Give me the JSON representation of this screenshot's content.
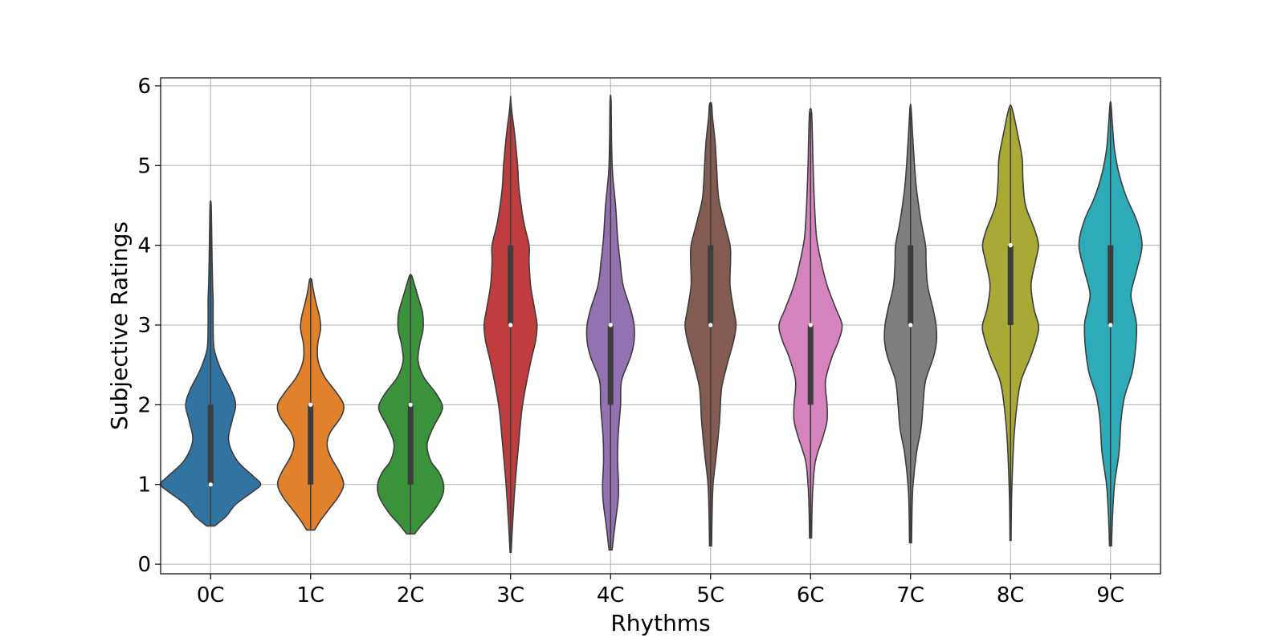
{
  "chart_data": {
    "type": "violin",
    "xlabel": "Rhythms",
    "ylabel": "Subjective Ratings",
    "ylim": [
      -0.12,
      6.1
    ],
    "yticks": [
      "0",
      "1",
      "2",
      "3",
      "4",
      "5",
      "6"
    ],
    "grid": true,
    "categories": [
      "0C",
      "1C",
      "2C",
      "3C",
      "4C",
      "5C",
      "6C",
      "7C",
      "8C",
      "9C"
    ],
    "colors": [
      "#3274a1",
      "#e1812c",
      "#3a923a",
      "#c03d3e",
      "#9372b2",
      "#845b53",
      "#d684bd",
      "#7f7f7f",
      "#a9aa35",
      "#2eabb8"
    ],
    "violins": [
      {
        "name": "0C",
        "range": [
          0.48,
          4.52
        ],
        "median": 1,
        "q1": 1,
        "q3": 2,
        "density": [
          [
            0.48,
            0.08
          ],
          [
            0.6,
            0.31
          ],
          [
            0.75,
            0.5
          ],
          [
            0.9,
            0.82
          ],
          [
            1.0,
            1.0
          ],
          [
            1.1,
            0.86
          ],
          [
            1.3,
            0.53
          ],
          [
            1.55,
            0.36
          ],
          [
            1.8,
            0.43
          ],
          [
            2.0,
            0.5
          ],
          [
            2.2,
            0.4
          ],
          [
            2.45,
            0.2
          ],
          [
            2.7,
            0.07
          ],
          [
            3.0,
            0.05
          ],
          [
            3.3,
            0.05
          ],
          [
            3.5,
            0.04
          ],
          [
            3.8,
            0.03
          ],
          [
            4.2,
            0.02
          ],
          [
            4.52,
            0.01
          ]
        ]
      },
      {
        "name": "1C",
        "range": [
          0.43,
          3.57
        ],
        "median": 2,
        "q1": 1,
        "q3": 2,
        "density": [
          [
            0.43,
            0.08
          ],
          [
            0.55,
            0.2
          ],
          [
            0.7,
            0.38
          ],
          [
            0.85,
            0.56
          ],
          [
            1.0,
            0.66
          ],
          [
            1.15,
            0.58
          ],
          [
            1.35,
            0.4
          ],
          [
            1.5,
            0.33
          ],
          [
            1.65,
            0.39
          ],
          [
            1.85,
            0.61
          ],
          [
            2.0,
            0.66
          ],
          [
            2.15,
            0.52
          ],
          [
            2.35,
            0.28
          ],
          [
            2.55,
            0.15
          ],
          [
            2.75,
            0.14
          ],
          [
            2.95,
            0.2
          ],
          [
            3.1,
            0.18
          ],
          [
            3.3,
            0.1
          ],
          [
            3.45,
            0.05
          ],
          [
            3.57,
            0.02
          ]
        ]
      },
      {
        "name": "2C",
        "range": [
          0.38,
          3.62
        ],
        "median": 2,
        "q1": 1,
        "q3": 2,
        "density": [
          [
            0.38,
            0.08
          ],
          [
            0.5,
            0.23
          ],
          [
            0.65,
            0.44
          ],
          [
            0.85,
            0.63
          ],
          [
            1.0,
            0.66
          ],
          [
            1.15,
            0.57
          ],
          [
            1.3,
            0.4
          ],
          [
            1.5,
            0.33
          ],
          [
            1.7,
            0.44
          ],
          [
            1.9,
            0.61
          ],
          [
            2.0,
            0.63
          ],
          [
            2.15,
            0.5
          ],
          [
            2.35,
            0.26
          ],
          [
            2.55,
            0.15
          ],
          [
            2.75,
            0.18
          ],
          [
            2.95,
            0.25
          ],
          [
            3.15,
            0.24
          ],
          [
            3.35,
            0.15
          ],
          [
            3.5,
            0.08
          ],
          [
            3.62,
            0.02
          ]
        ]
      },
      {
        "name": "3C",
        "range": [
          0.15,
          5.85
        ],
        "median": 3,
        "q1": 3,
        "q3": 4,
        "density": [
          [
            0.15,
            0.01
          ],
          [
            0.5,
            0.04
          ],
          [
            1.0,
            0.09
          ],
          [
            1.5,
            0.16
          ],
          [
            2.0,
            0.24
          ],
          [
            2.5,
            0.39
          ],
          [
            2.8,
            0.5
          ],
          [
            3.0,
            0.53
          ],
          [
            3.2,
            0.48
          ],
          [
            3.5,
            0.4
          ],
          [
            3.8,
            0.37
          ],
          [
            4.0,
            0.37
          ],
          [
            4.3,
            0.26
          ],
          [
            4.7,
            0.17
          ],
          [
            5.0,
            0.14
          ],
          [
            5.4,
            0.08
          ],
          [
            5.7,
            0.02
          ],
          [
            5.85,
            0.0
          ]
        ]
      },
      {
        "name": "4C",
        "range": [
          0.18,
          5.82
        ],
        "median": 3,
        "q1": 2,
        "q3": 3,
        "density": [
          [
            0.18,
            0.03
          ],
          [
            0.5,
            0.09
          ],
          [
            0.8,
            0.15
          ],
          [
            1.0,
            0.16
          ],
          [
            1.3,
            0.14
          ],
          [
            1.6,
            0.15
          ],
          [
            2.0,
            0.2
          ],
          [
            2.3,
            0.22
          ],
          [
            2.6,
            0.4
          ],
          [
            2.8,
            0.47
          ],
          [
            3.0,
            0.47
          ],
          [
            3.2,
            0.4
          ],
          [
            3.5,
            0.25
          ],
          [
            3.8,
            0.19
          ],
          [
            4.1,
            0.14
          ],
          [
            4.5,
            0.1
          ],
          [
            4.9,
            0.04
          ],
          [
            5.3,
            0.02
          ],
          [
            5.82,
            0.01
          ]
        ]
      },
      {
        "name": "5C",
        "range": [
          0.23,
          5.77
        ],
        "median": 3,
        "q1": 3,
        "q3": 4,
        "density": [
          [
            0.23,
            0.02
          ],
          [
            0.6,
            0.03
          ],
          [
            1.0,
            0.05
          ],
          [
            1.4,
            0.12
          ],
          [
            1.8,
            0.18
          ],
          [
            2.2,
            0.22
          ],
          [
            2.5,
            0.33
          ],
          [
            2.8,
            0.46
          ],
          [
            3.0,
            0.51
          ],
          [
            3.2,
            0.46
          ],
          [
            3.5,
            0.39
          ],
          [
            3.8,
            0.4
          ],
          [
            4.0,
            0.39
          ],
          [
            4.3,
            0.27
          ],
          [
            4.6,
            0.16
          ],
          [
            5.0,
            0.12
          ],
          [
            5.3,
            0.09
          ],
          [
            5.6,
            0.04
          ],
          [
            5.77,
            0.02
          ]
        ]
      },
      {
        "name": "6C",
        "range": [
          0.33,
          5.67
        ],
        "median": 3,
        "q1": 2,
        "q3": 3,
        "density": [
          [
            0.33,
            0.02
          ],
          [
            0.7,
            0.03
          ],
          [
            1.0,
            0.05
          ],
          [
            1.3,
            0.1
          ],
          [
            1.6,
            0.25
          ],
          [
            1.8,
            0.33
          ],
          [
            2.0,
            0.33
          ],
          [
            2.3,
            0.3
          ],
          [
            2.6,
            0.43
          ],
          [
            2.8,
            0.56
          ],
          [
            3.0,
            0.63
          ],
          [
            3.2,
            0.51
          ],
          [
            3.5,
            0.33
          ],
          [
            3.8,
            0.21
          ],
          [
            4.1,
            0.12
          ],
          [
            4.5,
            0.08
          ],
          [
            5.0,
            0.05
          ],
          [
            5.3,
            0.04
          ],
          [
            5.67,
            0.02
          ]
        ]
      },
      {
        "name": "7C",
        "range": [
          0.27,
          5.73
        ],
        "median": 3,
        "q1": 3,
        "q3": 4,
        "density": [
          [
            0.27,
            0.02
          ],
          [
            0.7,
            0.03
          ],
          [
            1.0,
            0.05
          ],
          [
            1.4,
            0.12
          ],
          [
            1.7,
            0.21
          ],
          [
            2.0,
            0.25
          ],
          [
            2.3,
            0.3
          ],
          [
            2.6,
            0.46
          ],
          [
            2.8,
            0.52
          ],
          [
            3.0,
            0.51
          ],
          [
            3.2,
            0.45
          ],
          [
            3.5,
            0.34
          ],
          [
            3.8,
            0.31
          ],
          [
            4.0,
            0.3
          ],
          [
            4.3,
            0.21
          ],
          [
            4.7,
            0.12
          ],
          [
            5.0,
            0.08
          ],
          [
            5.4,
            0.04
          ],
          [
            5.73,
            0.01
          ]
        ]
      },
      {
        "name": "8C",
        "range": [
          0.3,
          5.72
        ],
        "median": 4,
        "q1": 3,
        "q3": 4,
        "density": [
          [
            0.3,
            0.01
          ],
          [
            0.8,
            0.02
          ],
          [
            1.2,
            0.04
          ],
          [
            1.6,
            0.07
          ],
          [
            2.0,
            0.13
          ],
          [
            2.3,
            0.21
          ],
          [
            2.6,
            0.4
          ],
          [
            2.85,
            0.53
          ],
          [
            3.0,
            0.56
          ],
          [
            3.2,
            0.47
          ],
          [
            3.5,
            0.41
          ],
          [
            3.8,
            0.5
          ],
          [
            4.0,
            0.56
          ],
          [
            4.2,
            0.48
          ],
          [
            4.5,
            0.3
          ],
          [
            4.8,
            0.25
          ],
          [
            5.1,
            0.23
          ],
          [
            5.4,
            0.14
          ],
          [
            5.72,
            0.03
          ]
        ]
      },
      {
        "name": "9C",
        "range": [
          0.23,
          5.77
        ],
        "median": 3,
        "q1": 3,
        "q3": 4,
        "density": [
          [
            0.23,
            0.02
          ],
          [
            0.6,
            0.04
          ],
          [
            1.0,
            0.08
          ],
          [
            1.4,
            0.17
          ],
          [
            1.8,
            0.21
          ],
          [
            2.1,
            0.28
          ],
          [
            2.4,
            0.43
          ],
          [
            2.7,
            0.5
          ],
          [
            3.0,
            0.52
          ],
          [
            3.2,
            0.46
          ],
          [
            3.4,
            0.41
          ],
          [
            3.7,
            0.53
          ],
          [
            4.0,
            0.63
          ],
          [
            4.3,
            0.53
          ],
          [
            4.6,
            0.32
          ],
          [
            4.9,
            0.17
          ],
          [
            5.2,
            0.08
          ],
          [
            5.5,
            0.04
          ],
          [
            5.77,
            0.01
          ]
        ]
      }
    ]
  }
}
